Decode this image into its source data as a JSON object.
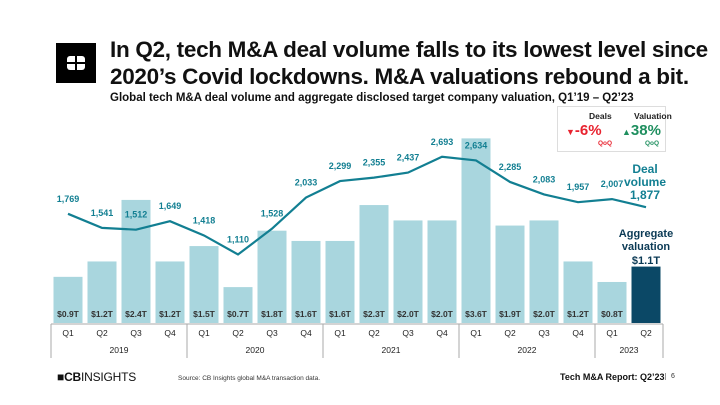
{
  "header": {
    "title_line1": "In Q2, tech M&A deal volume falls to its lowest level since",
    "title_line2": "2020’s Covid lockdowns. M&A valuations rebound a bit.",
    "subtitle": "Global tech M&A deal volume and aggregate disclosed target company valuation, Q1’19 – Q2’23"
  },
  "legend": {
    "deals_label": "Deals",
    "deals_value": "-6%",
    "deals_period": "QoQ",
    "deals_arrow": "down-triangle-icon",
    "deals_color": "#e8232f",
    "valuation_label": "Valuation",
    "valuation_value": "38%",
    "valuation_period": "QoQ",
    "valuation_arrow": "up-triangle-icon",
    "valuation_color": "#1f8f5f"
  },
  "chart_data": {
    "type": "bar+line",
    "categories": [
      "Q1",
      "Q2",
      "Q3",
      "Q4",
      "Q1",
      "Q2",
      "Q3",
      "Q4",
      "Q1",
      "Q2",
      "Q3",
      "Q4",
      "Q1",
      "Q2",
      "Q3",
      "Q4",
      "Q1",
      "Q2"
    ],
    "year_groups": [
      {
        "label": "2019",
        "count": 4
      },
      {
        "label": "2020",
        "count": 4
      },
      {
        "label": "2021",
        "count": 4
      },
      {
        "label": "2022",
        "count": 4
      },
      {
        "label": "2023",
        "count": 2
      }
    ],
    "bar_series": {
      "name": "Aggregate valuation",
      "unit": "$T",
      "values": [
        0.9,
        1.2,
        2.4,
        1.2,
        1.5,
        0.7,
        1.8,
        1.6,
        1.6,
        2.3,
        2.0,
        2.0,
        3.6,
        1.9,
        2.0,
        1.2,
        0.8,
        1.1
      ],
      "labels": [
        "$0.9T",
        "$1.2T",
        "$2.4T",
        "$1.2T",
        "$1.5T",
        "$0.7T",
        "$1.8T",
        "$1.6T",
        "$1.6T",
        "$2.3T",
        "$2.0T",
        "$2.0T",
        "$3.6T",
        "$1.9T",
        "$2.0T",
        "$1.2T",
        "$0.8T",
        ""
      ],
      "color": "#a9d6de",
      "highlight_color": "#0b4866",
      "ylim": [
        0,
        3.9
      ]
    },
    "line_series": {
      "name": "Deal volume",
      "values": [
        1769,
        1541,
        1512,
        1649,
        1418,
        1110,
        1528,
        2033,
        2299,
        2355,
        2437,
        2693,
        2634,
        2285,
        2083,
        1957,
        2007,
        1877
      ],
      "labels": [
        "1,769",
        "1,541",
        "1,512",
        "1,649",
        "1,418",
        "1,110",
        "1,528",
        "2,033",
        "2,299",
        "2,355",
        "2,437",
        "2,693",
        "2,634",
        "2,285",
        "2,083",
        "1,957",
        "2,007",
        ""
      ],
      "color": "#127f92",
      "ylim": [
        0,
        3240
      ]
    },
    "annotations": {
      "deal_line1": "Deal",
      "deal_line2": "volume",
      "deal_value": "1,877",
      "val_line1": "Aggregate",
      "val_line2": "valuation",
      "val_value": "$1.1T"
    }
  },
  "footer": {
    "brand_bold": "CB",
    "brand_light": "INSIGHTS",
    "source": "Source: CB Insights global M&A transaction data.",
    "report": "Tech M&A Report: Q2’23",
    "page": "6"
  }
}
